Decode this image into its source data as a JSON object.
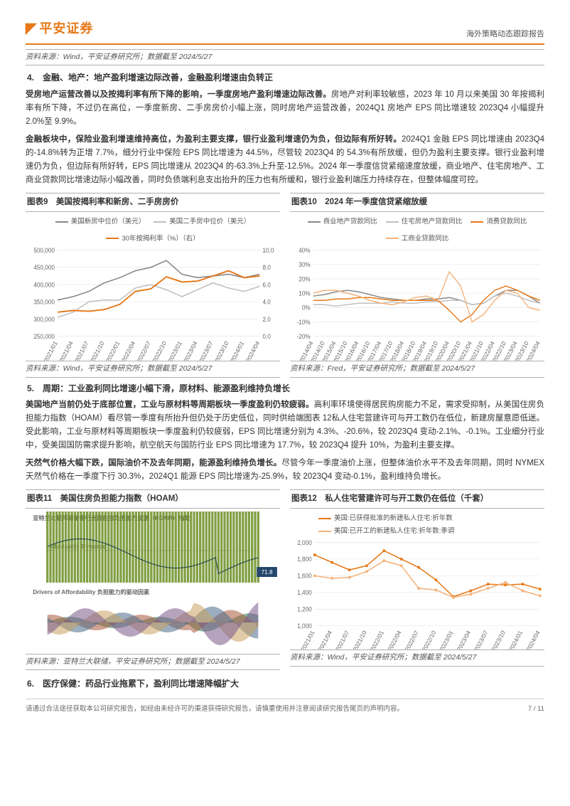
{
  "header": {
    "logo_text": "平安证券",
    "right_text": "海外策略动态跟踪报告"
  },
  "top_source": "资料来源：Wind，平安证券研究所；数据截至 2024/5/27",
  "section4": {
    "heading": "4.　金融、地产：地产盈利增速边际改善，金融盈利增速由负转正",
    "para1_lead": "受房地产运营改善以及按揭利率有所下降的影响，一季度房地产盈利增速边际改善。",
    "para1_rest": "房地产对利率较敏感，2023 年 10 月以来美国 30 年按揭利率有所下降，不过仍在高位，一季度新房、二手房房价小幅上涨，同时房地产运营改善，2024Q1 房地产 EPS 同比增速较 2023Q4 小幅提升 2.0%至 9.9%。",
    "para2_lead": "金融板块中，保险业盈利增速维持高位，为盈利主要支撑，银行业盈利增速仍为负，但边际有所好转。",
    "para2_rest": "2024Q1 金融 EPS 同比增速由 2023Q4 的-14.8%转为正增 7.7%，细分行业中保险 EPS 同比增速为 44.5%，尽管较 2023Q4 的 54.3%有所放缓，但仍为盈利主要支撑。银行业盈利增速仍为负，但边际有所好转，EPS 同比增速从 2023Q4 的-63.3%上升至-12.5%。2024 年一季度信贷紧缩速度放缓，商业地产、住宅房地产、工商业贷款同比增速边际小幅改善，同时负债端利息支出抬升的压力也有所缓和，银行业盈利端压力持续存在，但整体幅度可控。"
  },
  "chart9": {
    "title": "图表9　美国按揭利率和新房、二手房房价",
    "source": "资料来源：Wind，平安证券研究所；数据截至 2024/5/27",
    "type": "line",
    "legend": [
      {
        "label": "美国新房中位价（美元）",
        "color": "#888888"
      },
      {
        "label": "美国二手房中位价（美元）",
        "color": "#c0c0c0"
      },
      {
        "label": "30年按揭利率（%）（右）",
        "color": "#e67817"
      }
    ],
    "y_left": {
      "min": 250000,
      "max": 500000,
      "ticks": [
        250000,
        300000,
        350000,
        400000,
        450000,
        500000
      ]
    },
    "y_right": {
      "min": 0.0,
      "max": 10.0,
      "ticks": [
        0.0,
        2.0,
        4.0,
        6.0,
        8.0,
        10.0
      ]
    },
    "x_labels": [
      "2021/01",
      "2021/04",
      "2021/07",
      "2021/10",
      "2022/01",
      "2022/04",
      "2022/07",
      "2022/10",
      "2023/01",
      "2023/04",
      "2023/07",
      "2023/10",
      "2024/01",
      "2024/04"
    ],
    "series_new_home": [
      355000,
      365000,
      380000,
      405000,
      420000,
      440000,
      450000,
      470000,
      430000,
      420000,
      425000,
      430000,
      420000,
      430000
    ],
    "series_exist_home": [
      305000,
      320000,
      350000,
      355000,
      355000,
      390000,
      400000,
      385000,
      365000,
      385000,
      405000,
      390000,
      380000,
      395000
    ],
    "series_mortgage": [
      2.8,
      3.0,
      2.9,
      3.1,
      3.7,
      5.2,
      5.5,
      6.9,
      6.3,
      6.4,
      7.0,
      7.6,
      6.8,
      7.0
    ],
    "background_color": "#ffffff",
    "grid_color": "#e8e8e8",
    "line_width": 1.4
  },
  "chart10": {
    "title": "图表10　2024 年一季度信贷紧缩放缓",
    "source": "资料来源：Fred，平安证券研究所；数据截至 2024/5/27",
    "type": "line",
    "legend": [
      {
        "label": "商业地产贷款同比",
        "color": "#888888"
      },
      {
        "label": "住宅房地产贷款同比",
        "color": "#c0c0c0"
      },
      {
        "label": "消费贷款同比",
        "color": "#e67817"
      },
      {
        "label": "工商业贷款同比",
        "color": "#f4b27a"
      }
    ],
    "y": {
      "min": -20,
      "max": 40,
      "ticks": [
        -20,
        -10,
        0,
        10,
        20,
        30,
        40
      ],
      "suffix": "%"
    },
    "x_labels": [
      "2014/04",
      "2014/10",
      "2015/04",
      "2015/10",
      "2016/04",
      "2016/10",
      "2017/04",
      "2017/10",
      "2018/04",
      "2018/10",
      "2019/04",
      "2019/10",
      "2020/04",
      "2020/10",
      "2021/04",
      "2021/10",
      "2022/04",
      "2022/10",
      "2023/04",
      "2023/10",
      "2024/04"
    ],
    "series_cre": [
      8,
      9,
      11,
      12,
      11,
      9,
      7,
      6,
      5,
      5,
      6,
      6,
      7,
      5,
      2,
      3,
      8,
      12,
      12,
      8,
      3
    ],
    "series_res": [
      2,
      2,
      1,
      2,
      3,
      3,
      3,
      4,
      3,
      3,
      4,
      4,
      5,
      5,
      2,
      3,
      8,
      10,
      8,
      5,
      3
    ],
    "series_consumer": [
      5,
      5,
      6,
      6,
      7,
      7,
      6,
      5,
      5,
      5,
      5,
      5,
      -2,
      -10,
      -5,
      5,
      12,
      15,
      12,
      8,
      5
    ],
    "series_ci": [
      10,
      12,
      12,
      10,
      8,
      5,
      3,
      2,
      4,
      7,
      8,
      5,
      25,
      15,
      -10,
      -5,
      5,
      12,
      10,
      0,
      -2
    ],
    "background_color": "#ffffff",
    "grid_color": "#e8e8e8",
    "line_width": 1.3
  },
  "section5": {
    "heading": "5.　周期：工业盈利同比增速小幅下滑，原材料、能源盈利维持负增长",
    "para1_lead": "美国地产当前仍处于底部位置，工业与原材料等周期板块一季度盈利仍较疲弱。",
    "para1_rest": "高利率环境使得居民购房能力不足，需求受抑制，从美国住房负担能力指数（HOAM）看尽管一季度有所抬升但仍处于历史低位，同时供给端图表 12私人住宅营建许可与开工数仍在低位，新建房屋意愿低迷。受此影响，工业与原材料等周期板块一季度盈利仍较疲弱，EPS 同比增速分别为 4.3%、-20.6%，较 2023Q4 变动-2.1%、-0.1%。工业细分行业中，受美国国防需求提升影响，航空航天与国防行业 EPS 同比增速为 17.7%，较 2023Q4 提升 10%，为盈利主要支撑。",
    "para2_lead": "天然气价格大幅下跌，国际油价不及去年同期，能源盈利维持负增长。",
    "para2_rest": "尽管今年一季度油价上涨，但整体油价水平不及去年同期，同时 NYMEX 天然气价格在一季度下行 30.3%，2024Q1 能源 EPS 同比增速为-25.9%，较 2023Q4 变动-0.1%，盈利维持负增长。"
  },
  "chart11": {
    "title": "图表11　美国住房负担能力指数（HOAM）",
    "source": "资料来源：亚特兰大联储，平安证券研究所；数据截至 2024/5/27",
    "type": "infographic",
    "upper_label": "亚特兰大联邦储备银行全国住房负担能力监测（HOAM）指数",
    "threshold_label": "Affordability Threshold",
    "hoam_last": 71.8,
    "lower_label": "Drivers of Affordability  负担能力的驱动因素",
    "colors": {
      "bars": "#6b8e23",
      "line": "#2f4f4f",
      "drivers": [
        "#2f7d5b",
        "#a85a3a",
        "#4a6a8a",
        "#c9a060",
        "#7a5a8a"
      ]
    },
    "background_color": "#ffffff"
  },
  "chart12": {
    "title": "图表12　私人住宅营建许可与开工数仍在低位（千套）",
    "source": "资料来源：Wind，平安证券研究所；数据截至 2024/5/27",
    "type": "line",
    "legend": [
      {
        "label": "美国:已获得批准的新建私人住宅:折年数",
        "color": "#e67817"
      },
      {
        "label": "美国:已开工的新建私人住宅:折年数:季调",
        "color": "#f4b27a"
      }
    ],
    "y": {
      "min": 1000,
      "max": 2000,
      "ticks": [
        1000,
        1200,
        1400,
        1600,
        1800,
        2000
      ]
    },
    "x_labels": [
      "2021/01",
      "2021/04",
      "2021/07",
      "2021/10",
      "2022/01",
      "2022/04",
      "2022/07",
      "2022/10",
      "2023/01",
      "2023/04",
      "2023/07",
      "2023/10",
      "2024/01",
      "2024/04"
    ],
    "series_permits": [
      1850,
      1760,
      1670,
      1720,
      1900,
      1800,
      1700,
      1550,
      1350,
      1420,
      1500,
      1490,
      1500,
      1440
    ],
    "series_starts": [
      1600,
      1570,
      1580,
      1650,
      1780,
      1720,
      1450,
      1430,
      1340,
      1380,
      1450,
      1520,
      1420,
      1360
    ],
    "background_color": "#ffffff",
    "grid_color": "#e8e8e8",
    "line_width": 1.4
  },
  "section6": {
    "heading": "6.　医疗保健：药品行业拖累下，盈利同比增速降幅扩大"
  },
  "footer": {
    "left": "请通过合法途径获取本公司研究报告，如经由未经许可的渠道获得研究报告，请慎重使用并注意阅读研究报告尾页的声明内容。",
    "right": "7 / 11"
  }
}
